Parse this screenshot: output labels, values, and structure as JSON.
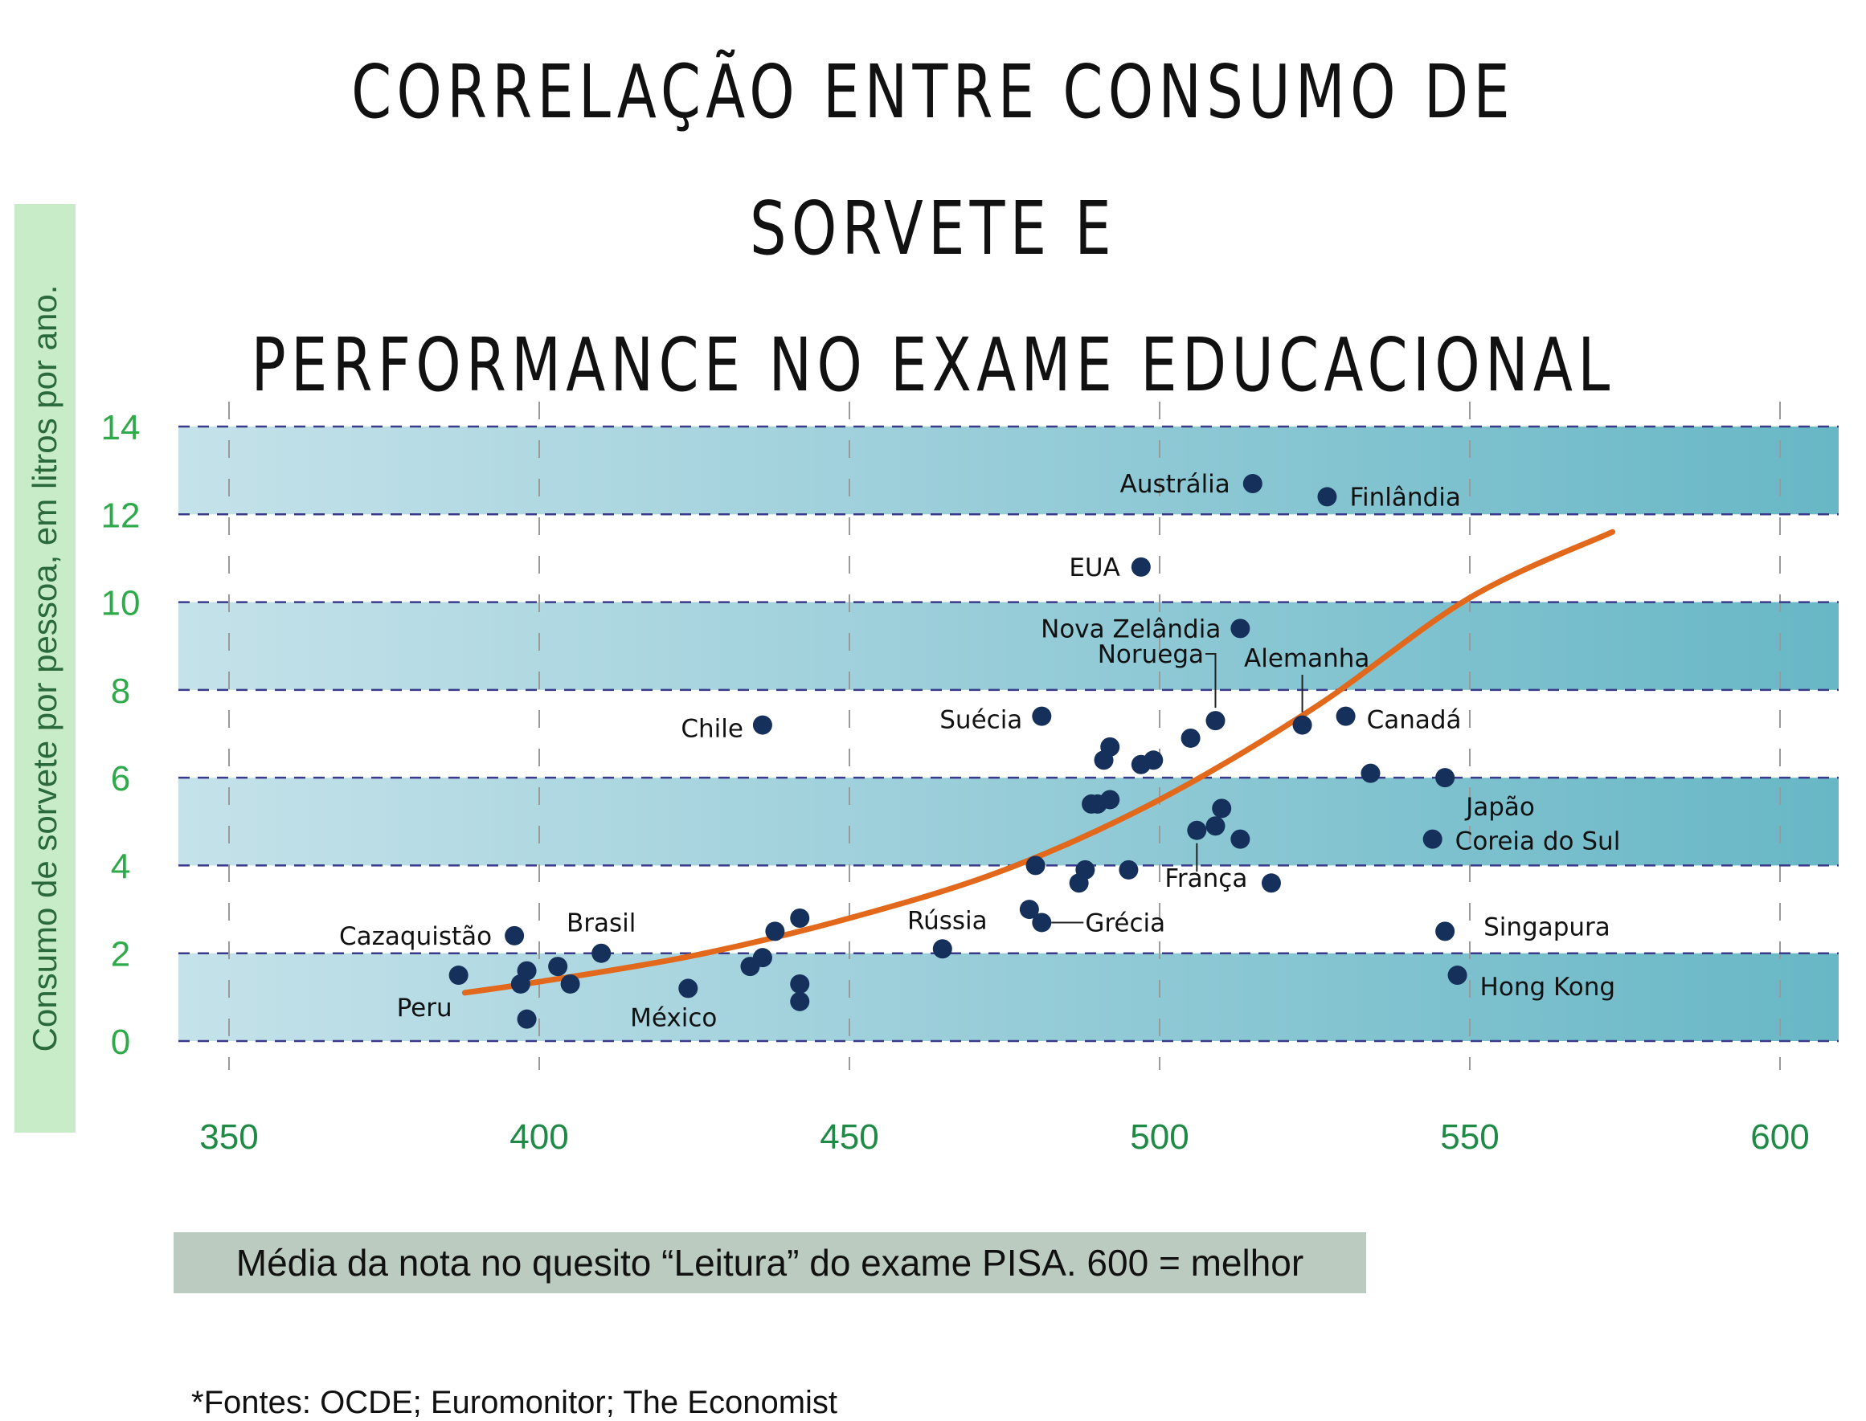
{
  "title": {
    "line1": "CORRELAÇÃO ENTRE CONSUMO DE SORVETE E",
    "line2": "PERFORMANCE NO EXAME EDUCACIONAL"
  },
  "source": "*Fontes: OCDE; Euromonitor; The Economist",
  "colors": {
    "band_light": "#c5e2ea",
    "band_dark": "#68b7c6",
    "point": "#15305a",
    "trend": "#e2691c",
    "ytick": "#2eaa4a",
    "xtick": "#1f8a45",
    "dash_line": "#3a3a8a",
    "ylabel_bg": "#c8ebc8",
    "xlabel_bg": "#bccbbf"
  },
  "chart_data": {
    "type": "scatter",
    "xlabel": "Média da nota no quesito “Leitura” do exame PISA. 600 = melhor",
    "ylabel": "Consumo de sorvete por pessoa, em litros por ano.",
    "xlim": [
      350,
      600
    ],
    "ylim": [
      0,
      14
    ],
    "x_ticks": [
      350,
      400,
      450,
      500,
      550,
      600
    ],
    "y_ticks": [
      0,
      2,
      4,
      6,
      8,
      10,
      12,
      14
    ],
    "bands": [
      [
        0,
        2
      ],
      [
        4,
        6
      ],
      [
        8,
        10
      ],
      [
        12,
        14
      ]
    ],
    "grid": "vertical dashed lines at x ticks; dashed horizontal band edges",
    "trendline": {
      "type": "exponential",
      "points": [
        [
          388,
          1.1
        ],
        [
          400,
          1.35
        ],
        [
          425,
          1.95
        ],
        [
          450,
          2.8
        ],
        [
          475,
          3.9
        ],
        [
          500,
          5.5
        ],
        [
          525,
          7.6
        ],
        [
          550,
          10.1
        ],
        [
          573,
          11.6
        ]
      ]
    },
    "points": [
      {
        "label": "Austrália",
        "x": 515,
        "y": 12.7
      },
      {
        "label": "Finlândia",
        "x": 527,
        "y": 12.4
      },
      {
        "label": "EUA",
        "x": 497,
        "y": 10.8
      },
      {
        "label": "Nova Zelândia",
        "x": 513,
        "y": 9.4
      },
      {
        "label": "Noruega",
        "x": 509,
        "y": 7.3
      },
      {
        "label": "Alemanha",
        "x": 523,
        "y": 7.2
      },
      {
        "label": "Canadá",
        "x": 530,
        "y": 7.4
      },
      {
        "label": "Chile",
        "x": 436,
        "y": 7.2
      },
      {
        "label": "Suécia",
        "x": 481,
        "y": 7.4
      },
      {
        "label": "Japão",
        "x": 546,
        "y": 6.0
      },
      {
        "label": "Coreia do Sul",
        "x": 544,
        "y": 4.6
      },
      {
        "label": "França",
        "x": 506,
        "y": 4.8
      },
      {
        "label": "Singapura",
        "x": 546,
        "y": 2.5
      },
      {
        "label": "Hong Kong",
        "x": 548,
        "y": 1.5
      },
      {
        "label": "Rússia",
        "x": 465,
        "y": 2.1
      },
      {
        "label": "Grécia",
        "x": 481,
        "y": 2.7
      },
      {
        "label": "Cazaquistão",
        "x": 396,
        "y": 2.4
      },
      {
        "label": "Brasil",
        "x": 410,
        "y": 2.0
      },
      {
        "label": "Peru",
        "x": 387,
        "y": 1.5
      },
      {
        "label": "México",
        "x": 424,
        "y": 1.2
      },
      {
        "label": "",
        "x": 534,
        "y": 6.1
      },
      {
        "label": "",
        "x": 505,
        "y": 6.9
      },
      {
        "label": "",
        "x": 492,
        "y": 6.7
      },
      {
        "label": "",
        "x": 499,
        "y": 6.4
      },
      {
        "label": "",
        "x": 497,
        "y": 6.3
      },
      {
        "label": "",
        "x": 491,
        "y": 6.4
      },
      {
        "label": "",
        "x": 492,
        "y": 5.5
      },
      {
        "label": "",
        "x": 490,
        "y": 5.4
      },
      {
        "label": "",
        "x": 489,
        "y": 5.4
      },
      {
        "label": "",
        "x": 510,
        "y": 5.3
      },
      {
        "label": "",
        "x": 509,
        "y": 4.9
      },
      {
        "label": "",
        "x": 513,
        "y": 4.6
      },
      {
        "label": "",
        "x": 518,
        "y": 3.6
      },
      {
        "label": "",
        "x": 480,
        "y": 4.0
      },
      {
        "label": "",
        "x": 488,
        "y": 3.9
      },
      {
        "label": "",
        "x": 495,
        "y": 3.9
      },
      {
        "label": "",
        "x": 487,
        "y": 3.6
      },
      {
        "label": "",
        "x": 479,
        "y": 3.0
      },
      {
        "label": "",
        "x": 442,
        "y": 2.8
      },
      {
        "label": "",
        "x": 438,
        "y": 2.5
      },
      {
        "label": "",
        "x": 436,
        "y": 1.9
      },
      {
        "label": "",
        "x": 434,
        "y": 1.7
      },
      {
        "label": "",
        "x": 442,
        "y": 1.3
      },
      {
        "label": "",
        "x": 442,
        "y": 0.9
      },
      {
        "label": "",
        "x": 403,
        "y": 1.7
      },
      {
        "label": "",
        "x": 398,
        "y": 1.6
      },
      {
        "label": "",
        "x": 397,
        "y": 1.3
      },
      {
        "label": "",
        "x": 405,
        "y": 1.3
      },
      {
        "label": "",
        "x": 398,
        "y": 0.5
      }
    ]
  }
}
